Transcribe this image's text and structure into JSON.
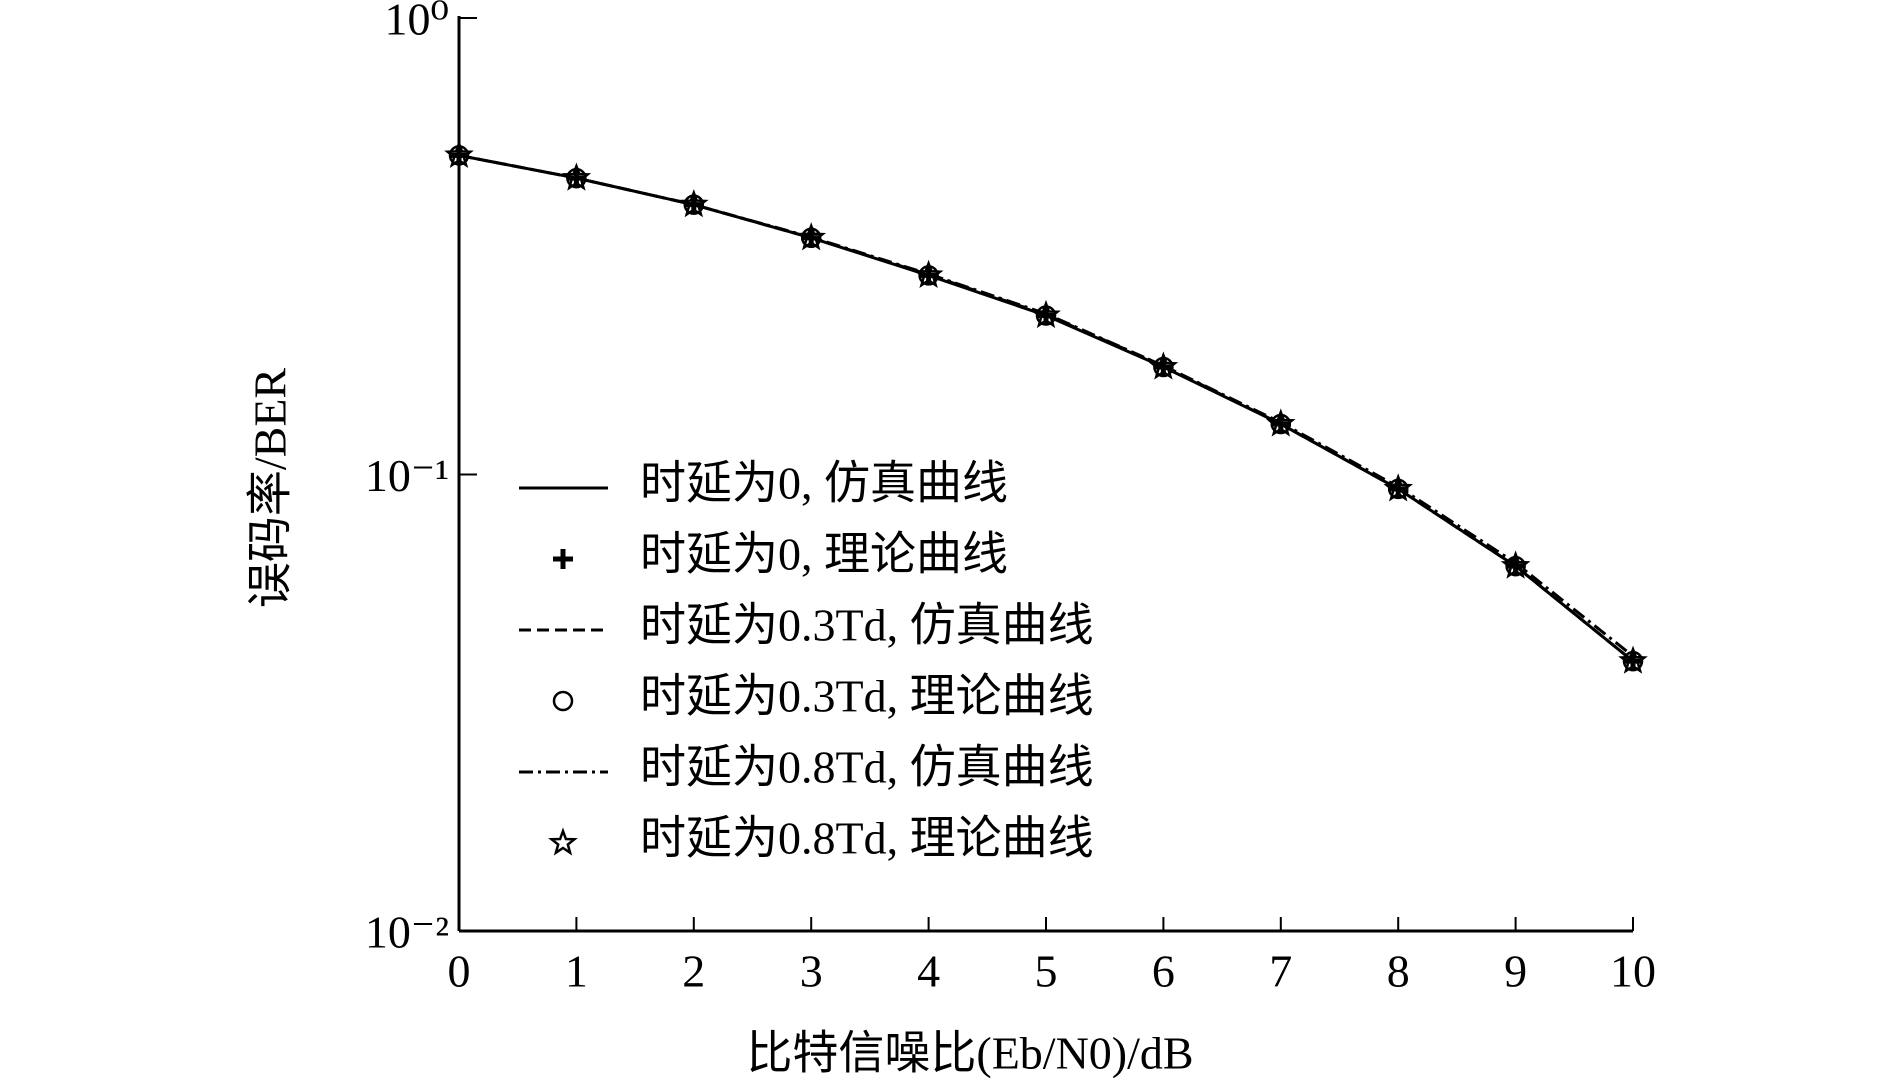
{
  "chart_data": {
    "type": "line",
    "x_label": "比特信噪比(Eb/N0)/dB",
    "y_label": "误码率/BER",
    "x": [
      0,
      1,
      2,
      3,
      4,
      5,
      6,
      7,
      8,
      9,
      10
    ],
    "xlim": [
      0,
      10
    ],
    "xticks": [
      0,
      1,
      2,
      3,
      4,
      5,
      6,
      7,
      8,
      9,
      10
    ],
    "ylim": [
      0.01,
      1
    ],
    "yticks": [
      {
        "value": 1,
        "label": "10⁰"
      },
      {
        "value": 0.1,
        "label": "10⁻¹"
      },
      {
        "value": 0.01,
        "label": "10⁻²"
      }
    ],
    "log_y": true,
    "grid": false,
    "legend": "left",
    "series": [
      {
        "name": "时延为0, 仿真曲线",
        "color": "#000000",
        "line": "solid",
        "marker": "none",
        "values": [
          0.5,
          0.446,
          0.39,
          0.33,
          0.273,
          0.223,
          0.172,
          0.129,
          0.093,
          0.063,
          0.039
        ]
      },
      {
        "name": "时延为0, 理论曲线",
        "color": "#000000",
        "line": "none",
        "marker": "plus",
        "values": [
          0.5,
          0.446,
          0.39,
          0.33,
          0.273,
          0.223,
          0.172,
          0.129,
          0.093,
          0.063,
          0.039
        ]
      },
      {
        "name": "时延为0.3Td, 仿真曲线",
        "color": "#000000",
        "line": "dashed",
        "marker": "none",
        "values": [
          0.5,
          0.446,
          0.39,
          0.33,
          0.274,
          0.224,
          0.173,
          0.129,
          0.093,
          0.063,
          0.039
        ]
      },
      {
        "name": "时延为0.3Td, 理论曲线",
        "color": "#000000",
        "line": "none",
        "marker": "circle",
        "values": [
          0.5,
          0.446,
          0.39,
          0.33,
          0.273,
          0.223,
          0.172,
          0.129,
          0.093,
          0.063,
          0.039
        ]
      },
      {
        "name": "时延为0.8Td, 仿真曲线",
        "color": "#000000",
        "line": "dashdot",
        "marker": "none",
        "values": [
          0.5,
          0.446,
          0.39,
          0.331,
          0.275,
          0.225,
          0.173,
          0.13,
          0.094,
          0.064,
          0.04
        ]
      },
      {
        "name": "时延为0.8Td, 理论曲线",
        "color": "#000000",
        "line": "none",
        "marker": "star",
        "values": [
          0.5,
          0.446,
          0.39,
          0.33,
          0.273,
          0.223,
          0.172,
          0.129,
          0.093,
          0.063,
          0.039
        ]
      }
    ]
  }
}
